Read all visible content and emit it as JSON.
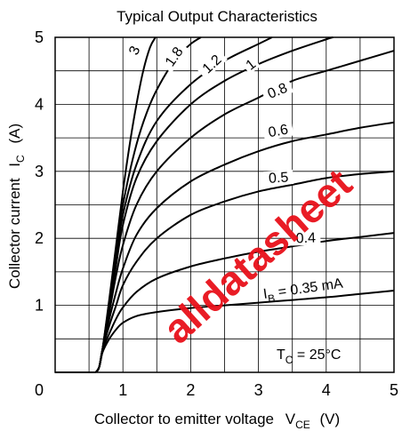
{
  "chart_data": {
    "type": "line",
    "title": "Typical Output Characteristics",
    "xlabel": "Collector to emitter voltage",
    "xlabel_symbol": "V",
    "xlabel_sub": "CE",
    "xlabel_unit": "(V)",
    "ylabel": "Collector current",
    "ylabel_symbol": "I",
    "ylabel_sub": "C",
    "ylabel_unit": "(A)",
    "xlim": [
      0,
      5
    ],
    "ylim": [
      0,
      5
    ],
    "xticks": [
      "0",
      "1",
      "2",
      "3",
      "4",
      "5"
    ],
    "yticks": [
      "1",
      "2",
      "3",
      "4",
      "5"
    ],
    "grid": true,
    "annotation": {
      "symbol": "T",
      "sub": "C",
      "text": " = 25°C"
    },
    "series": [
      {
        "name": "3",
        "x": [
          0.6,
          0.65,
          0.7,
          0.8,
          0.9,
          1.0,
          1.1,
          1.2,
          1.3,
          1.4,
          1.48
        ],
        "y": [
          0.0,
          0.08,
          0.35,
          1.1,
          1.9,
          2.7,
          3.4,
          4.0,
          4.5,
          4.85,
          5.0
        ]
      },
      {
        "name": "1.8",
        "x": [
          0.6,
          0.65,
          0.7,
          0.8,
          0.9,
          1.0,
          1.2,
          1.4,
          1.6,
          1.8,
          2.0,
          2.15
        ],
        "y": [
          0.0,
          0.08,
          0.35,
          1.05,
          1.8,
          2.5,
          3.4,
          4.0,
          4.4,
          4.7,
          4.9,
          5.0
        ]
      },
      {
        "name": "1.2",
        "x": [
          0.6,
          0.65,
          0.7,
          0.8,
          0.9,
          1.0,
          1.2,
          1.5,
          2.0,
          2.5,
          3.0,
          3.2
        ],
        "y": [
          0.0,
          0.08,
          0.35,
          1.0,
          1.7,
          2.35,
          3.1,
          3.75,
          4.3,
          4.65,
          4.9,
          5.0
        ]
      },
      {
        "name": "1",
        "x": [
          0.6,
          0.65,
          0.7,
          0.8,
          0.9,
          1.0,
          1.2,
          1.5,
          2.0,
          2.5,
          3.0,
          3.5,
          4.0,
          4.1
        ],
        "y": [
          0.0,
          0.08,
          0.35,
          0.95,
          1.6,
          2.2,
          2.9,
          3.45,
          4.0,
          4.35,
          4.6,
          4.8,
          4.97,
          5.0
        ]
      },
      {
        "name": "0.8",
        "x": [
          0.6,
          0.65,
          0.7,
          0.8,
          0.9,
          1.0,
          1.2,
          1.5,
          2.0,
          2.5,
          3.0,
          3.5,
          4.0,
          4.5,
          5.0
        ],
        "y": [
          0.0,
          0.08,
          0.35,
          0.9,
          1.45,
          1.9,
          2.5,
          3.0,
          3.5,
          3.85,
          4.1,
          4.35,
          4.5,
          4.65,
          4.8
        ]
      },
      {
        "name": "0.6",
        "x": [
          0.6,
          0.65,
          0.7,
          0.8,
          0.9,
          1.0,
          1.2,
          1.5,
          2.0,
          2.5,
          3.0,
          3.5,
          4.0,
          4.5,
          5.0
        ],
        "y": [
          0.0,
          0.08,
          0.35,
          0.8,
          1.2,
          1.55,
          2.05,
          2.45,
          2.85,
          3.1,
          3.3,
          3.45,
          3.55,
          3.65,
          3.73
        ]
      },
      {
        "name": "0.5",
        "x": [
          0.6,
          0.65,
          0.7,
          0.8,
          0.9,
          1.0,
          1.2,
          1.5,
          2.0,
          2.5,
          3.0,
          3.5,
          4.0,
          4.5,
          5.0
        ],
        "y": [
          0.0,
          0.08,
          0.35,
          0.7,
          1.0,
          1.3,
          1.65,
          2.0,
          2.35,
          2.55,
          2.7,
          2.8,
          2.9,
          2.96,
          3.0
        ]
      },
      {
        "name": "0.4",
        "x": [
          0.6,
          0.65,
          0.7,
          0.8,
          0.9,
          1.0,
          1.2,
          1.5,
          2.0,
          2.5,
          3.0,
          3.5,
          4.0,
          4.5,
          5.0
        ],
        "y": [
          0.0,
          0.08,
          0.33,
          0.58,
          0.8,
          0.97,
          1.2,
          1.4,
          1.58,
          1.7,
          1.8,
          1.88,
          1.96,
          2.02,
          2.08
        ]
      },
      {
        "name": "0.35",
        "x": [
          0.6,
          0.65,
          0.7,
          0.8,
          0.9,
          1.0,
          1.2,
          1.5,
          2.0,
          2.5,
          3.0,
          3.5,
          4.0,
          4.5,
          5.0
        ],
        "y": [
          0.0,
          0.08,
          0.3,
          0.5,
          0.64,
          0.74,
          0.84,
          0.9,
          0.96,
          1.0,
          1.04,
          1.08,
          1.12,
          1.17,
          1.22
        ]
      }
    ],
    "curve_labels": [
      {
        "text": "3",
        "x": 1.22,
        "y": 4.78,
        "rot": -65
      },
      {
        "text": "1.8",
        "x": 1.8,
        "y": 4.68,
        "rot": -55
      },
      {
        "text": "1.2",
        "x": 2.35,
        "y": 4.56,
        "rot": -43
      },
      {
        "text": "1",
        "x": 2.92,
        "y": 4.55,
        "rot": -38
      },
      {
        "text": "0.8",
        "x": 3.3,
        "y": 4.15,
        "rot": -22
      },
      {
        "text": "0.6",
        "x": 3.3,
        "y": 3.55,
        "rot": -10
      },
      {
        "text": "0.5",
        "x": 3.3,
        "y": 2.85,
        "rot": -4
      },
      {
        "text": "0.4",
        "x": 3.7,
        "y": 1.95,
        "rot": -2
      }
    ],
    "ib_label": {
      "symbol": "I",
      "sub": "B",
      "text": " = 0.35 mA",
      "x": 3.08,
      "y": 1.1,
      "rot": -8
    },
    "watermark": "alldatasheet"
  }
}
